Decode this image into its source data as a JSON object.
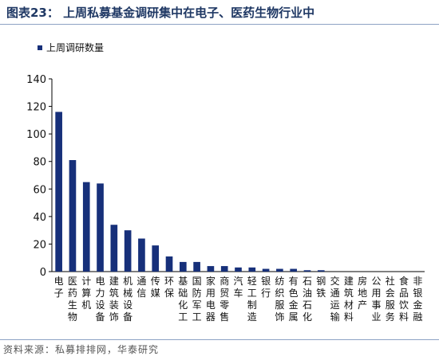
{
  "figure": {
    "label": "图表23：",
    "title": "上周私募基金调研集中在电子、医药生物行业中",
    "source": "资料来源：私募排排网，华泰研究"
  },
  "chart_data": {
    "type": "bar",
    "legend": [
      "上周调研数量"
    ],
    "legend_position": "top-left",
    "color": "#17307a",
    "ylim": [
      0,
      140
    ],
    "yticks": [
      0,
      20,
      40,
      60,
      80,
      100,
      120,
      140
    ],
    "grid": false,
    "categories": [
      "电子",
      "医药生物",
      "计算机",
      "电力设备",
      "建筑装饰",
      "机械设备",
      "通信",
      "传媒",
      "环保",
      "基础化工",
      "国防军工",
      "家用电器",
      "商贸零售",
      "汽车",
      "轻工制造",
      "银行",
      "纺织服饰",
      "有色金属",
      "石油石化",
      "钢铁",
      "交通运输",
      "建筑材料",
      "房地产",
      "公用事业",
      "社会服务",
      "食品饮料",
      "非银金融"
    ],
    "series": [
      {
        "name": "上周调研数量",
        "values": [
          116,
          81,
          65,
          64,
          34,
          30,
          24,
          19,
          11,
          7,
          7,
          4,
          4,
          3,
          3,
          2,
          2,
          2,
          1,
          1,
          0,
          0,
          0,
          0,
          0,
          0,
          0
        ]
      }
    ]
  }
}
